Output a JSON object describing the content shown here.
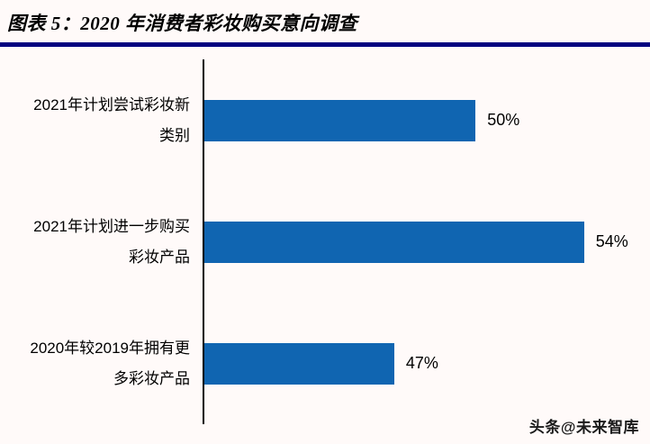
{
  "page": {
    "background": "#fffaf9",
    "watermark": "头条@未来智库"
  },
  "header": {
    "title": "图表 5：2020 年消费者彩妆购买意向调查",
    "underline_color": "#000080"
  },
  "chart_data": {
    "type": "bar",
    "orientation": "horizontal",
    "title": "2020 年消费者彩妆购买意向调查",
    "categories": [
      "2021年计划尝试彩妆新类别",
      "2021年计划进一步购买彩妆产品",
      "2020年较2019年拥有更多彩妆产品"
    ],
    "values": [
      50,
      54,
      47
    ],
    "value_labels": [
      "50%",
      "54%",
      "47%"
    ],
    "xlabel": "",
    "ylabel": "",
    "xlim": [
      40,
      56
    ],
    "grid": false,
    "legend": false,
    "bar_color": "#1065b1",
    "axis_color": "#000000"
  }
}
